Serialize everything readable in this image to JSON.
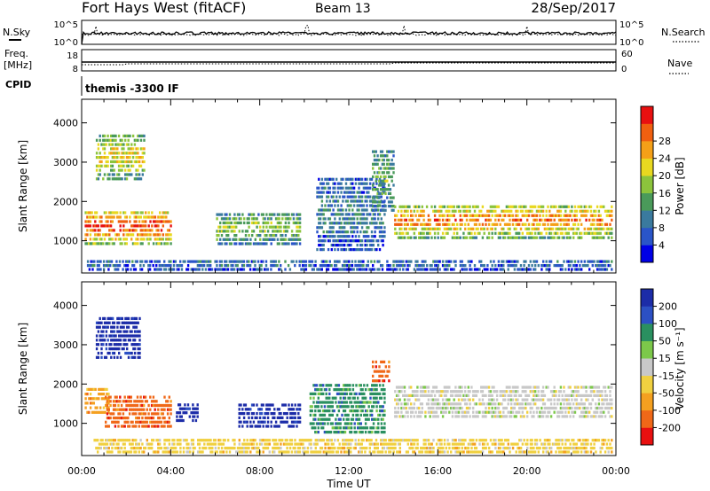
{
  "header": {
    "station": "Fort Hays West (fitACF)",
    "beam": "Beam 13",
    "date": "28/Sep/2017"
  },
  "left_labels": {
    "nsky": "N.Sky",
    "freq_line1": "Freq.",
    "freq_line2": "[MHz]",
    "cpid": "CPID",
    "cpid_value": "themis -3300 IF"
  },
  "right_labels": {
    "nsearch": "N.Search",
    "nave": "Nave"
  },
  "axis": {
    "xlabel": "Time UT",
    "ylabel": "Slant Range [km]"
  },
  "chart_data": [
    {
      "type": "heatmap",
      "name": "power",
      "x_ticks": [
        "00:00",
        "04:00",
        "08:00",
        "12:00",
        "16:00",
        "20:00",
        "00:00"
      ],
      "y_ticks": [
        1000,
        2000,
        3000,
        4000
      ],
      "ylim": [
        180,
        4600
      ],
      "colorbar": {
        "label": "Power [dB]",
        "ticks": [
          4,
          8,
          12,
          16,
          20,
          24,
          28
        ],
        "colors": [
          "#0000e6",
          "#2a55c8",
          "#3a7a9e",
          "#4a9a5a",
          "#8cc43c",
          "#e8d820",
          "#f4a018",
          "#f06010",
          "#e81010"
        ]
      },
      "regions": [
        {
          "t": [
            0.1,
            4.0
          ],
          "r": [
            850,
            1750
          ],
          "level": 0.85
        },
        {
          "t": [
            0.6,
            2.8
          ],
          "r": [
            2500,
            3700
          ],
          "level": 0.6
        },
        {
          "t": [
            6.0,
            9.8
          ],
          "r": [
            850,
            1700
          ],
          "level": 0.45
        },
        {
          "t": [
            10.5,
            13.6
          ],
          "r": [
            700,
            2600
          ],
          "level": 0.25
        },
        {
          "t": [
            13.0,
            14.0
          ],
          "r": [
            1700,
            3300
          ],
          "level": 0.4
        },
        {
          "t": [
            14.0,
            23.8
          ],
          "r": [
            1000,
            1900
          ],
          "level": 0.75
        },
        {
          "t": [
            0.2,
            23.8
          ],
          "r": [
            200,
            500
          ],
          "level": 0.2
        }
      ]
    },
    {
      "type": "heatmap",
      "name": "velocity",
      "x_ticks": [
        "00:00",
        "04:00",
        "08:00",
        "12:00",
        "16:00",
        "20:00",
        "00:00"
      ],
      "y_ticks": [
        1000,
        2000,
        3000,
        4000
      ],
      "ylim": [
        180,
        4600
      ],
      "colorbar": {
        "label": "Velocity [m s⁻¹]",
        "ticks": [
          "200",
          "100",
          "50",
          "15",
          "-15",
          "-50",
          "-100",
          "-200"
        ],
        "colors": [
          "#1c2ca8",
          "#2c50c4",
          "#2a9060",
          "#7cc84a",
          "#c8c8c8",
          "#f0d040",
          "#f4a020",
          "#f06818",
          "#e81010"
        ]
      },
      "regions": [
        {
          "t": [
            0.1,
            1.2
          ],
          "r": [
            1200,
            1900
          ],
          "v": "-100"
        },
        {
          "t": [
            1.0,
            4.0
          ],
          "r": [
            850,
            1700
          ],
          "v": "-200"
        },
        {
          "t": [
            0.6,
            2.6
          ],
          "r": [
            2600,
            3700
          ],
          "v": "200"
        },
        {
          "t": [
            4.2,
            5.2
          ],
          "r": [
            1000,
            1500
          ],
          "v": "200"
        },
        {
          "t": [
            7.0,
            9.8
          ],
          "r": [
            850,
            1500
          ],
          "v": "200"
        },
        {
          "t": [
            10.2,
            13.6
          ],
          "r": [
            700,
            2000
          ],
          "v": "50"
        },
        {
          "t": [
            13.0,
            13.8
          ],
          "r": [
            2000,
            2600
          ],
          "v": "-200"
        },
        {
          "t": [
            14.0,
            23.8
          ],
          "r": [
            1100,
            1950
          ],
          "v": "-15"
        },
        {
          "t": [
            0.5,
            23.8
          ],
          "r": [
            200,
            600
          ],
          "v": "-50"
        }
      ]
    }
  ]
}
